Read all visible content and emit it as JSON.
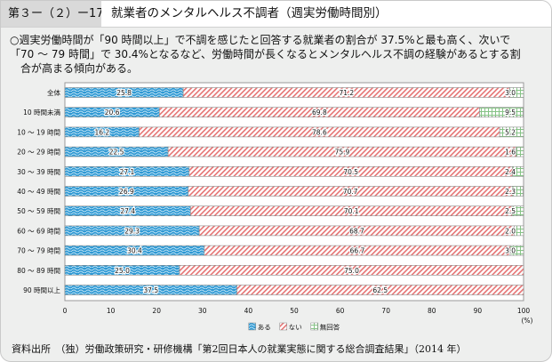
{
  "header": {
    "figure_number": "第３ー（２）ー17図",
    "title": "就業者のメンタルヘルス不調者（週実労働時間別）"
  },
  "summary": {
    "lines": [
      "○週実労働時間が「90 時間以上」で不調を感じたと回答する就業者の割合が 37.5%と最も高く、次いで",
      "「70 ～ 79 時間」で 30.4%となるなど、労働時間が長くなるとメンタルヘルス不調の経験があるとする割",
      "合が高まる傾向がある。"
    ]
  },
  "chart_data": {
    "type": "bar",
    "orientation": "horizontal",
    "stacked": true,
    "title": "就業者のメンタルヘルス不調者（週実労働時間別）",
    "xlabel": "(%)",
    "ylabel": "",
    "xlim": [
      0,
      100
    ],
    "x_ticks": [
      "0",
      "10",
      "20",
      "30",
      "40",
      "50",
      "60",
      "70",
      "80",
      "90",
      "100"
    ],
    "unit_label": "(%)",
    "categories": [
      "全体",
      "10 時間未満",
      "10 ～ 19 時間",
      "20 ～ 29 時間",
      "30 ～ 39 時間",
      "40 ～ 49 時間",
      "50 ～ 59 時間",
      "60 ～ 69 時間",
      "70 ～ 79 時間",
      "80 ～ 89 時間",
      "90 時間以上"
    ],
    "series": [
      {
        "name": "ある",
        "color": "#3a9fd6",
        "pattern": "wave",
        "values": [
          25.8,
          20.6,
          16.2,
          22.5,
          27.1,
          26.9,
          27.4,
          29.3,
          30.4,
          25.0,
          37.5
        ]
      },
      {
        "name": "ない",
        "color": "#e86b6b",
        "pattern": "diagonal",
        "values": [
          71.2,
          69.8,
          78.6,
          75.9,
          70.5,
          70.7,
          70.1,
          68.7,
          66.7,
          75.0,
          62.5
        ]
      },
      {
        "name": "無回答",
        "color": "#6fb56f",
        "pattern": "grid",
        "values": [
          3.0,
          9.5,
          5.2,
          1.6,
          2.4,
          2.3,
          2.5,
          2.0,
          3.0,
          null,
          null
        ]
      }
    ],
    "value_labels": [
      [
        "25.8",
        "71.2",
        "3.0"
      ],
      [
        "20.6",
        "69.8",
        "9.5"
      ],
      [
        "16.2",
        "78.6",
        "5.2"
      ],
      [
        "22.5",
        "75.9",
        "1.6"
      ],
      [
        "27.1",
        "70.5",
        "2.4"
      ],
      [
        "26.9",
        "70.7",
        "2.3"
      ],
      [
        "27.4",
        "70.1",
        "2.5"
      ],
      [
        "29.3",
        "68.7",
        "2.0"
      ],
      [
        "30.4",
        "66.7",
        "3.0"
      ],
      [
        "25.0",
        "75.0",
        ""
      ],
      [
        "37.5",
        "62.5",
        ""
      ]
    ],
    "legend": [
      "ある",
      "ない",
      "無回答"
    ],
    "legend_position": "bottom-center",
    "grid": false
  },
  "source": {
    "text": "資料出所　（独）労働政策研究・研修機構「第2回日本人の就業実態に関する総合調査結果」（2014 年）"
  }
}
